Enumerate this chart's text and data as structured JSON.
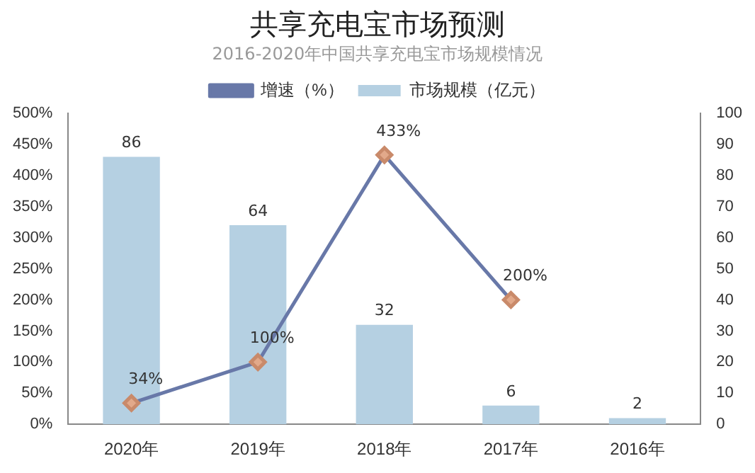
{
  "chart_data": {
    "type": "bar",
    "title": "共享充电宝市场预测",
    "subtitle": "2016-2020年中国共享充电宝市场规模情况",
    "categories": [
      "2020年",
      "2019年",
      "2018年",
      "2017年",
      "2016年"
    ],
    "series": [
      {
        "name": "增速（%）",
        "type": "line",
        "color": "#6878a8",
        "values": [
          34,
          100,
          433,
          200,
          null
        ],
        "value_labels": [
          "34%",
          "100%",
          "433%",
          "200%",
          null
        ],
        "marker": "diamond"
      },
      {
        "name": "市场规模（亿元）",
        "axis": "y2",
        "color": "#b5d0e2",
        "values": [
          86,
          64,
          32,
          6,
          2
        ]
      }
    ],
    "data_labels": true,
    "ylim": [
      0,
      500
    ],
    "yticks": [
      {
        "value": 0,
        "label": "0%"
      },
      {
        "value": 50,
        "label": "50%"
      },
      {
        "value": 100,
        "label": "100%"
      },
      {
        "value": 150,
        "label": "150%"
      },
      {
        "value": 200,
        "label": "200%"
      },
      {
        "value": 250,
        "label": "250%"
      },
      {
        "value": 300,
        "label": "300%"
      },
      {
        "value": 350,
        "label": "350%"
      },
      {
        "value": 400,
        "label": "400%"
      },
      {
        "value": 450,
        "label": "450%"
      },
      {
        "value": 500,
        "label": "500%"
      }
    ],
    "y2lim": [
      0,
      100
    ],
    "y2ticks": [
      0,
      10,
      20,
      30,
      40,
      50,
      60,
      70,
      80,
      90,
      100
    ],
    "grid": false,
    "legend": "top"
  }
}
